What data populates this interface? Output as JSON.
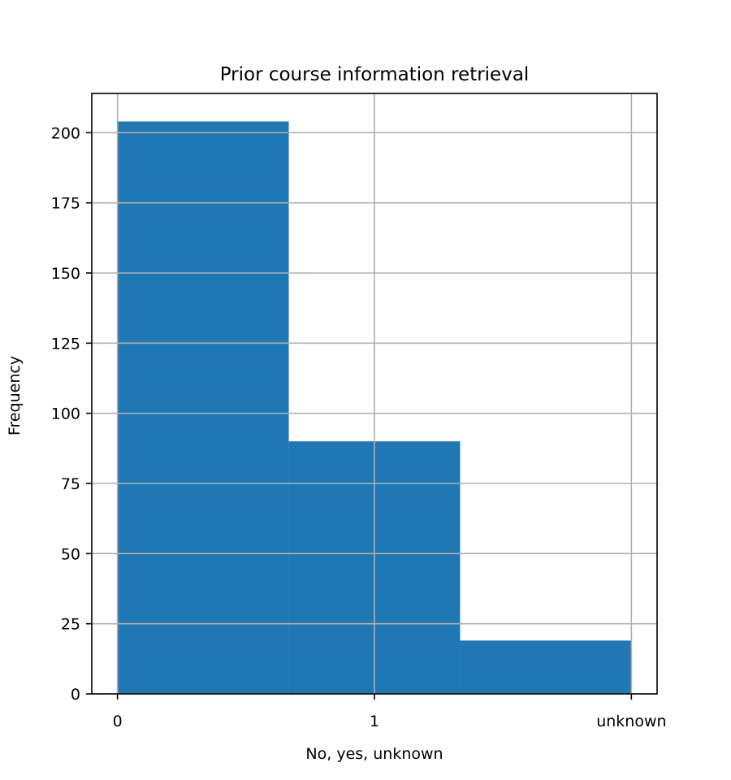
{
  "chart_data": {
    "type": "bar",
    "subtype": "histogram",
    "title": "Prior course information retrieval",
    "xlabel": "No, yes, unknown",
    "ylabel": "Frequency",
    "x_tick_labels": [
      "0",
      "1",
      "unknown"
    ],
    "y_ticks": [
      0,
      25,
      50,
      75,
      100,
      125,
      150,
      175,
      200
    ],
    "xlim": [
      -0.1,
      2.1
    ],
    "ylim": [
      0,
      214
    ],
    "bins": [
      {
        "start": 0,
        "end": 0.6667,
        "value": 204
      },
      {
        "start": 0.6667,
        "end": 1.3333,
        "value": 90
      },
      {
        "start": 1.3333,
        "end": 2,
        "value": 19
      }
    ],
    "bar_color": "#1f77b4",
    "grid": true
  }
}
